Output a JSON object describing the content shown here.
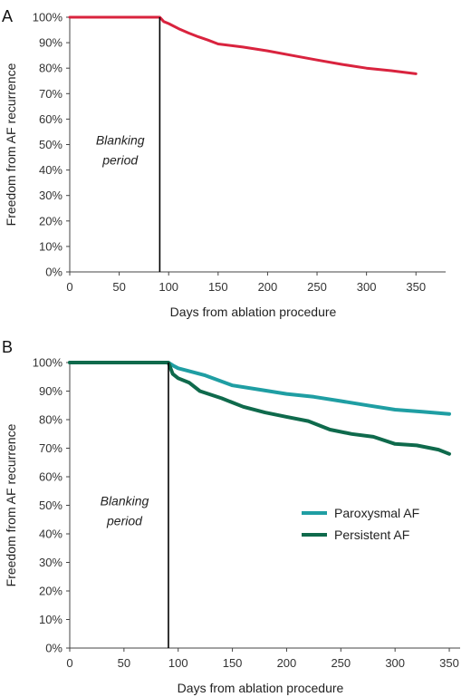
{
  "chart_data": [
    {
      "type": "line",
      "panel_label": "A",
      "xlabel": "Days from ablation procedure",
      "ylabel": "Freedom from AF recurrence",
      "xlim": [
        0,
        380
      ],
      "ylim": [
        0,
        100
      ],
      "x_ticks": [
        0,
        50,
        100,
        150,
        200,
        250,
        300,
        350
      ],
      "y_ticks": [
        "0%",
        "10%",
        "20%",
        "30%",
        "40%",
        "50%",
        "60%",
        "70%",
        "80%",
        "90%",
        "100%"
      ],
      "annotation_lines": [
        "Blanking",
        "period"
      ],
      "vline_x": 91,
      "grid": false,
      "series": [
        {
          "color": "#d9233e",
          "x": [
            0,
            91,
            95,
            100,
            110,
            120,
            130,
            140,
            150,
            175,
            200,
            225,
            250,
            275,
            300,
            325,
            350
          ],
          "y": [
            100,
            100,
            98.3,
            97.5,
            95.5,
            93.8,
            92.3,
            91,
            89.5,
            88.3,
            86.8,
            85,
            83.2,
            81.5,
            80,
            79,
            77.8
          ]
        }
      ]
    },
    {
      "type": "line",
      "panel_label": "B",
      "xlabel": "Days from ablation procedure",
      "ylabel": "Freedom from AF recurrence",
      "xlim": [
        0,
        360
      ],
      "ylim": [
        0,
        100
      ],
      "x_ticks": [
        0,
        50,
        100,
        150,
        200,
        250,
        300,
        350
      ],
      "y_ticks": [
        "0%",
        "10%",
        "20%",
        "30%",
        "40%",
        "50%",
        "60%",
        "70%",
        "80%",
        "90%",
        "100%"
      ],
      "annotation_lines": [
        "Blanking",
        "period"
      ],
      "vline_x": 91,
      "grid": false,
      "legend_position": "right",
      "series": [
        {
          "name": "Paroxysmal AF",
          "color": "#1f9ea3",
          "x": [
            0,
            91,
            95,
            100,
            110,
            125,
            150,
            175,
            200,
            225,
            250,
            275,
            300,
            325,
            350
          ],
          "y": [
            100,
            100,
            99,
            98,
            97,
            95.5,
            92,
            90.5,
            89,
            88,
            86.5,
            85,
            83.5,
            82.8,
            82
          ]
        },
        {
          "name": "Persistent AF",
          "color": "#0f6a4c",
          "x": [
            0,
            91,
            95,
            100,
            110,
            120,
            140,
            160,
            180,
            200,
            220,
            240,
            260,
            280,
            300,
            320,
            340,
            350
          ],
          "y": [
            100,
            100,
            96,
            94.5,
            93,
            90,
            87.5,
            84.5,
            82.5,
            81,
            79.5,
            76.5,
            75,
            74,
            71.5,
            71,
            69.5,
            68
          ]
        }
      ]
    }
  ]
}
